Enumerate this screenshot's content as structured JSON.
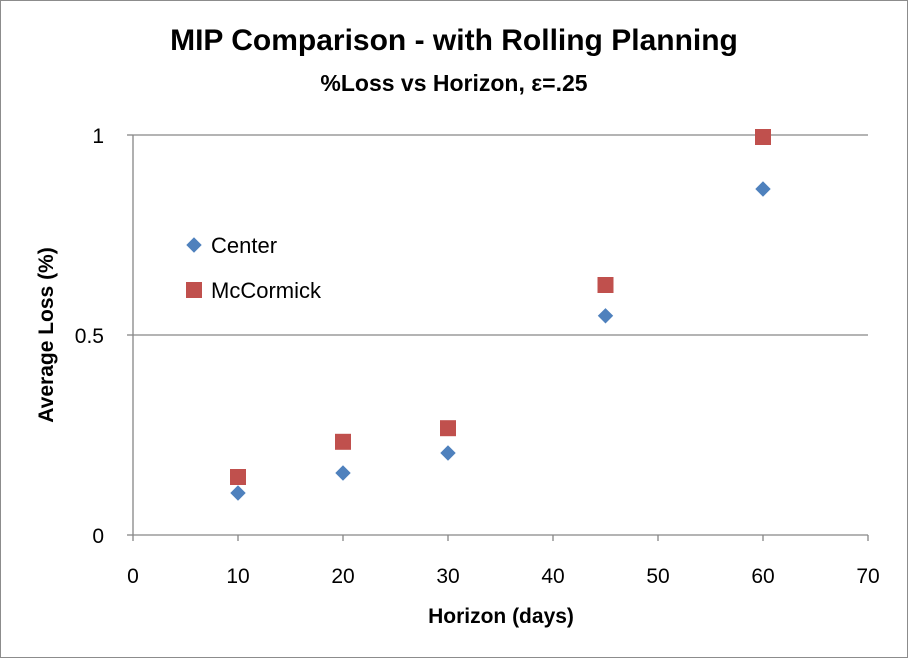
{
  "chart_data": {
    "type": "scatter",
    "title": "MIP Comparison - with Rolling Planning",
    "subtitle": "%Loss vs Horizon, ε=.25",
    "xlabel": "Horizon (days)",
    "ylabel": "Average Loss (%)",
    "xlim": [
      0,
      70
    ],
    "ylim": [
      0,
      1
    ],
    "xticks": [
      0,
      10,
      20,
      30,
      40,
      50,
      60,
      70
    ],
    "yticks": [
      0,
      0.5,
      1
    ],
    "ytick_labels": [
      "0",
      "0.5",
      "1"
    ],
    "grid": "horizontal major gridlines",
    "legend_position": "left",
    "series": [
      {
        "name": "Center",
        "marker": "diamond",
        "color": "#4f81bd",
        "x": [
          10,
          20,
          30,
          45,
          60
        ],
        "y": [
          0.105,
          0.155,
          0.205,
          0.548,
          0.865
        ]
      },
      {
        "name": "McCormick",
        "marker": "square",
        "color": "#c0504d",
        "x": [
          10,
          20,
          30,
          45,
          60
        ],
        "y": [
          0.145,
          0.233,
          0.267,
          0.625,
          0.995
        ]
      }
    ]
  }
}
